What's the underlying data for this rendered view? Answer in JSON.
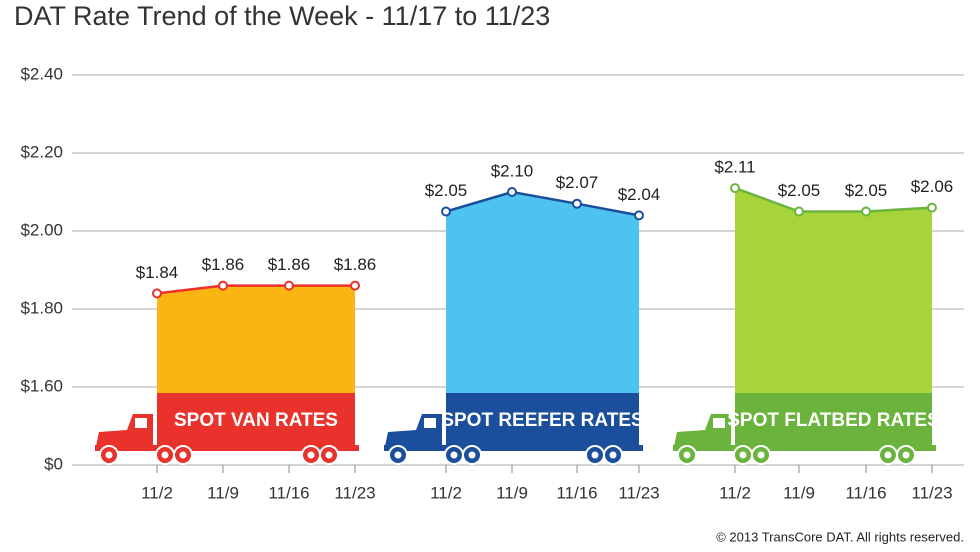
{
  "chart_data": {
    "type": "truck-area",
    "title": "DAT Rate Trend of the Week - 11/17 to 11/23",
    "source": "© 2013 TransCore DAT. All rights reserved.",
    "categories": [
      "11/2",
      "11/9",
      "11/16",
      "11/23"
    ],
    "ylim": [
      0,
      2.4
    ],
    "yticks": [
      {
        "value": 0,
        "label": "$0"
      },
      {
        "value": 1.6,
        "label": "$1.60"
      },
      {
        "value": 1.8,
        "label": "$1.80"
      },
      {
        "value": 2.0,
        "label": "$2.00"
      },
      {
        "value": 2.2,
        "label": "$2.20"
      },
      {
        "value": 2.4,
        "label": "$2.40"
      }
    ],
    "axis_break": true,
    "grid": true,
    "series": [
      {
        "name": "SPOT VAN RATES",
        "color": "#e8322b",
        "fill": "#f9b512",
        "values": [
          1.84,
          1.86,
          1.86,
          1.86
        ],
        "value_labels": [
          "$1.84",
          "$1.86",
          "$1.86",
          "$1.86"
        ]
      },
      {
        "name": "SPOT REEFER RATES",
        "color": "#1b4f9c",
        "fill": "#4fc3f0",
        "values": [
          2.05,
          2.1,
          2.07,
          2.04
        ],
        "value_labels": [
          "$2.05",
          "$2.10",
          "$2.07",
          "$2.04"
        ]
      },
      {
        "name": "SPOT FLATBED RATES",
        "color": "#6ab43e",
        "fill": "#a6d43a",
        "values": [
          2.11,
          2.05,
          2.05,
          2.06
        ],
        "value_labels": [
          "$2.11",
          "$2.05",
          "$2.05",
          "$2.06"
        ]
      }
    ]
  }
}
